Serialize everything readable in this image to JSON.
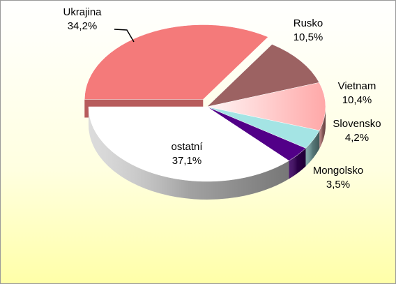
{
  "chart_data": {
    "type": "pie",
    "categories": [
      "Ukrajina",
      "Rusko",
      "Vietnam",
      "Slovensko",
      "Mongolsko",
      "ostatní"
    ],
    "values": [
      34.2,
      10.5,
      10.4,
      4.2,
      3.5,
      37.1
    ],
    "value_labels": [
      "34,2%",
      "10,5%",
      "10,4%",
      "4,2%",
      "3,5%",
      "37,1%"
    ],
    "colors": [
      "#f47a7a",
      "#9c6262",
      "#ffa8a8",
      "#a4e4e4",
      "#520088",
      "#ffffff"
    ],
    "exploded": [
      0
    ]
  }
}
